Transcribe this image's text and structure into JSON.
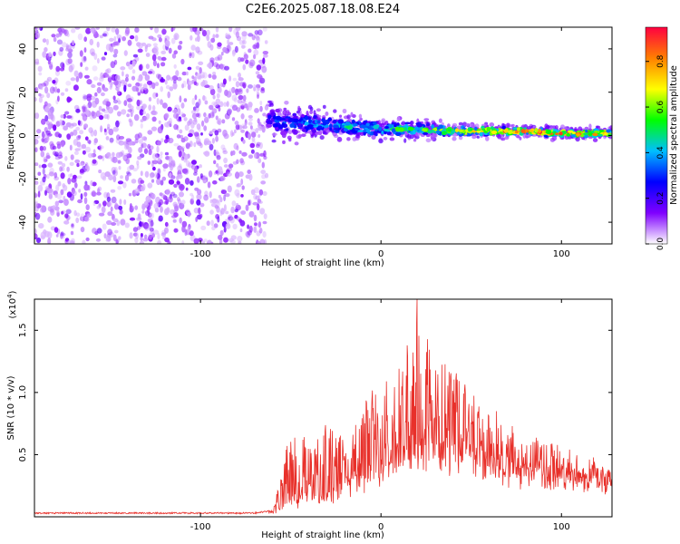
{
  "title": "C2E6.2025.087.18.08.E24",
  "chart_data": [
    {
      "type": "heatmap",
      "xlabel": "Height of straight line (km)",
      "ylabel": "Frequency (Hz)",
      "xlim": [
        -192,
        128
      ],
      "ylim": [
        -50,
        50
      ],
      "x_ticks": [
        -100,
        0,
        100
      ],
      "x_tick_labels": [
        "-100",
        "0",
        "100"
      ],
      "y_ticks": [
        -40,
        -20,
        0,
        20,
        40
      ],
      "y_tick_labels": [
        "-40",
        "-20",
        "0",
        "20",
        "40"
      ],
      "noise_region_x": [
        -192,
        -63
      ],
      "signal_region_x": [
        -63,
        128
      ],
      "ridge": [
        {
          "x": -63,
          "y": 8,
          "spread": 7,
          "amp": 0.3
        },
        {
          "x": -55,
          "y": 6,
          "spread": 8,
          "amp": 0.35
        },
        {
          "x": -45,
          "y": 6,
          "spread": 7,
          "amp": 0.4
        },
        {
          "x": -35,
          "y": 5,
          "spread": 6,
          "amp": 0.45
        },
        {
          "x": -20,
          "y": 4,
          "spread": 5,
          "amp": 0.5
        },
        {
          "x": 0,
          "y": 3,
          "spread": 5,
          "amp": 0.55
        },
        {
          "x": 20,
          "y": 3,
          "spread": 4,
          "amp": 0.6
        },
        {
          "x": 40,
          "y": 2,
          "spread": 3,
          "amp": 0.8
        },
        {
          "x": 60,
          "y": 2,
          "spread": 3,
          "amp": 0.85
        },
        {
          "x": 80,
          "y": 2,
          "spread": 2.5,
          "amp": 0.95
        },
        {
          "x": 100,
          "y": 1,
          "spread": 2.5,
          "amp": 0.95
        },
        {
          "x": 128,
          "y": 1,
          "spread": 2.5,
          "amp": 0.95
        }
      ],
      "colorbar": {
        "label": "Normalized spectral amplitude",
        "range": [
          0.0,
          0.95
        ],
        "ticks": [
          0.0,
          0.2,
          0.4,
          0.6,
          0.8
        ],
        "tick_labels": [
          "0.0",
          "0.2",
          "0.4",
          "0.6",
          "0.8"
        ],
        "colormap": [
          "#ffffff",
          "#7f00ff",
          "#0000ff",
          "#00bfff",
          "#00ff00",
          "#ffff00",
          "#ff8000",
          "#ff0040"
        ]
      }
    },
    {
      "type": "line",
      "xlabel": "Height of straight line (km)",
      "ylabel": "SNR (10 * v/v)",
      "y_multiplier_label": "(x10",
      "y_multiplier_exp": "4",
      "xlim": [
        -192,
        128
      ],
      "ylim": [
        0,
        1.75
      ],
      "x_ticks": [
        -100,
        0,
        100
      ],
      "x_tick_labels": [
        "-100",
        "0",
        "100"
      ],
      "y_ticks": [
        0.5,
        1.0,
        1.5
      ],
      "y_tick_labels": [
        "0.5",
        "1.0",
        "1.5"
      ],
      "color": "#e8302a",
      "envelope": [
        {
          "x": -192,
          "y": 0.03
        },
        {
          "x": -70,
          "y": 0.03
        },
        {
          "x": -60,
          "y": 0.05
        },
        {
          "x": -52,
          "y": 0.55
        },
        {
          "x": -45,
          "y": 0.7
        },
        {
          "x": -38,
          "y": 0.55
        },
        {
          "x": -30,
          "y": 0.8
        },
        {
          "x": -20,
          "y": 0.6
        },
        {
          "x": -10,
          "y": 0.9
        },
        {
          "x": 0,
          "y": 1.1
        },
        {
          "x": 10,
          "y": 1.2
        },
        {
          "x": 20,
          "y": 1.55
        },
        {
          "x": 30,
          "y": 1.3
        },
        {
          "x": 40,
          "y": 1.15
        },
        {
          "x": 50,
          "y": 0.95
        },
        {
          "x": 60,
          "y": 0.85
        },
        {
          "x": 70,
          "y": 0.75
        },
        {
          "x": 80,
          "y": 0.65
        },
        {
          "x": 90,
          "y": 0.6
        },
        {
          "x": 100,
          "y": 0.55
        },
        {
          "x": 110,
          "y": 0.5
        },
        {
          "x": 120,
          "y": 0.45
        },
        {
          "x": 128,
          "y": 0.4
        }
      ],
      "baseline": [
        {
          "x": -192,
          "y": 0.02
        },
        {
          "x": -60,
          "y": 0.02
        },
        {
          "x": -50,
          "y": 0.1
        },
        {
          "x": -30,
          "y": 0.15
        },
        {
          "x": -10,
          "y": 0.3
        },
        {
          "x": 10,
          "y": 0.45
        },
        {
          "x": 30,
          "y": 0.55
        },
        {
          "x": 50,
          "y": 0.45
        },
        {
          "x": 70,
          "y": 0.38
        },
        {
          "x": 90,
          "y": 0.33
        },
        {
          "x": 110,
          "y": 0.3
        },
        {
          "x": 128,
          "y": 0.3
        }
      ],
      "peak": {
        "x": 20,
        "y": 1.75
      }
    }
  ]
}
